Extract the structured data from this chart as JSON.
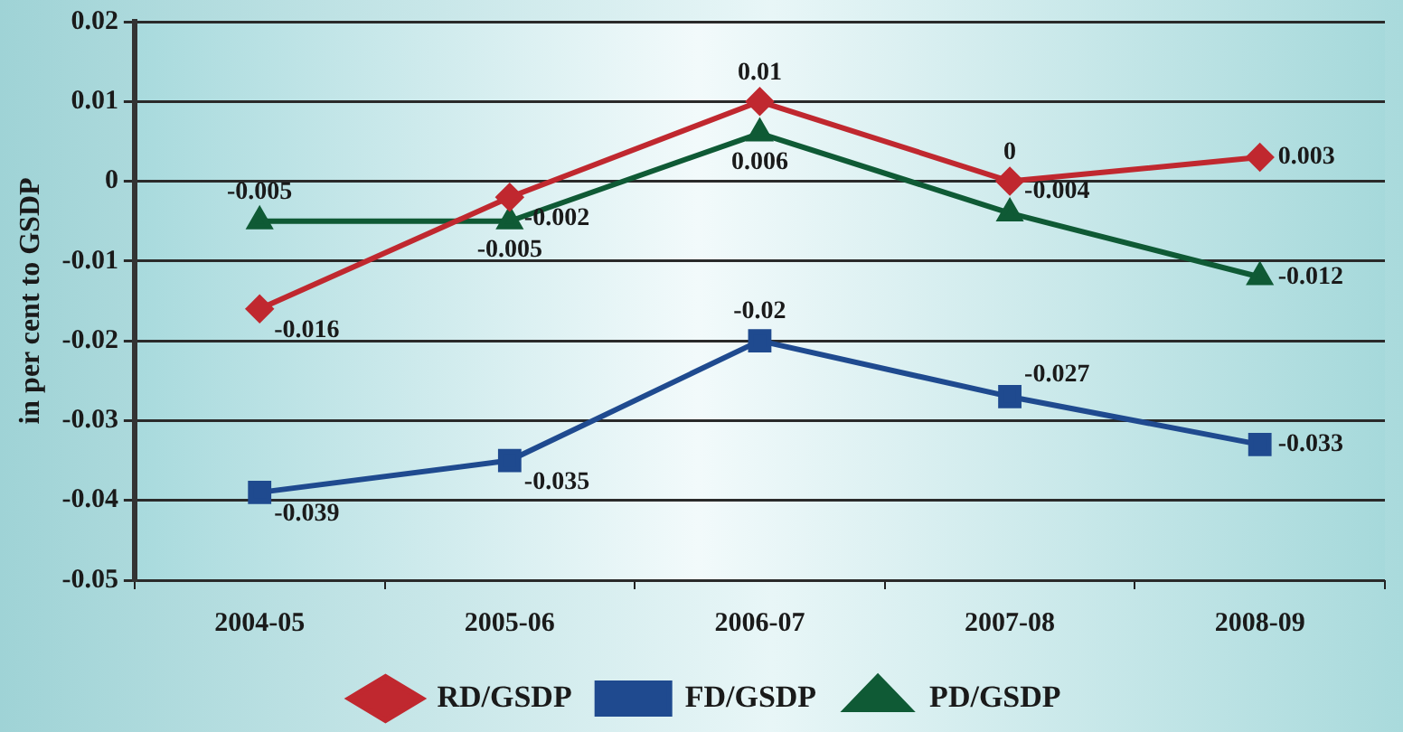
{
  "chart_data": {
    "type": "line",
    "ylabel": "in per cent to GSDP",
    "categories": [
      "2004-05",
      "2005-06",
      "2006-07",
      "2007-08",
      "2008-09"
    ],
    "series": [
      {
        "name": "RD/GSDP",
        "color": "#c0282f",
        "marker": "diamond",
        "values": [
          -0.016,
          -0.002,
          0.01,
          0,
          0.003
        ]
      },
      {
        "name": "FD/GSDP",
        "color": "#1f4a8f",
        "marker": "square",
        "values": [
          -0.039,
          -0.035,
          -0.02,
          -0.027,
          -0.033
        ]
      },
      {
        "name": "PD/GSDP",
        "color": "#0f5a35",
        "marker": "triangle",
        "values": [
          -0.005,
          -0.005,
          0.006,
          -0.004,
          -0.012
        ]
      }
    ],
    "ylim": [
      -0.05,
      0.02
    ],
    "yticks": [
      -0.05,
      -0.04,
      -0.03,
      -0.02,
      -0.01,
      0,
      0.01,
      0.02
    ],
    "grid": "y",
    "legend": "bottom",
    "data_labels": true,
    "line_style": "solid"
  }
}
